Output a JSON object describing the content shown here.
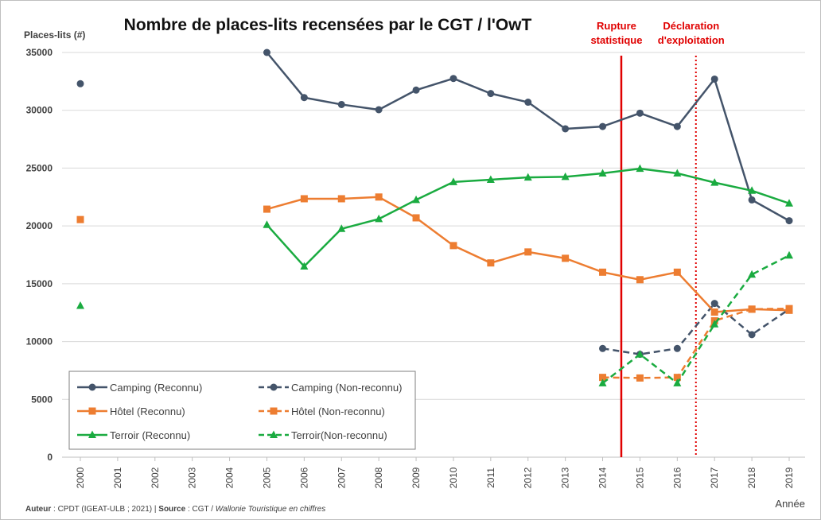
{
  "chart_data": {
    "type": "line",
    "title": "Nombre de places-lits recensées par le CGT / l'OwT",
    "y_label": "Places-lits (#)",
    "x_label": "Année",
    "categories": [
      "2000",
      "2001",
      "2002",
      "2003",
      "2004",
      "2005",
      "2006",
      "2007",
      "2008",
      "2009",
      "2010",
      "2011",
      "2012",
      "2013",
      "2014",
      "2015",
      "2016",
      "2017",
      "2018",
      "2019"
    ],
    "ylim": [
      0,
      35000
    ],
    "yticks": [
      0,
      5000,
      10000,
      15000,
      20000,
      25000,
      30000,
      35000
    ],
    "grid": true,
    "legend": "lower left",
    "series": [
      {
        "name": "Camping (Reconnu)",
        "color": "#44546a",
        "marker": "circle",
        "dash": false,
        "values": [
          32300,
          null,
          null,
          null,
          null,
          35000,
          31100,
          30500,
          30050,
          31750,
          32750,
          31450,
          30700,
          28400,
          28600,
          29750,
          28600,
          32700,
          22250,
          20450
        ]
      },
      {
        "name": "Camping (Non-reconnu)",
        "color": "#44546a",
        "marker": "circle",
        "dash": true,
        "values": [
          null,
          null,
          null,
          null,
          null,
          null,
          null,
          null,
          null,
          null,
          null,
          null,
          null,
          null,
          9400,
          8900,
          9400,
          13300,
          10600,
          12800
        ]
      },
      {
        "name": "Hôtel (Reconnu)",
        "color": "#ed7d31",
        "marker": "square",
        "dash": false,
        "values": [
          20550,
          null,
          null,
          null,
          null,
          21450,
          22350,
          22350,
          22500,
          20700,
          18300,
          16800,
          17750,
          17200,
          16000,
          15350,
          16000,
          12550,
          12800,
          12700
        ]
      },
      {
        "name": "Hôtel (Non-reconnu)",
        "color": "#ed7d31",
        "marker": "square",
        "dash": true,
        "values": [
          null,
          null,
          null,
          null,
          null,
          null,
          null,
          null,
          null,
          null,
          null,
          null,
          null,
          null,
          6900,
          6850,
          6900,
          11800,
          12800,
          12850
        ]
      },
      {
        "name": "Terroir (Reconnu)",
        "color": "#1aab40",
        "marker": "triangle",
        "dash": false,
        "values": [
          13100,
          null,
          null,
          null,
          null,
          20100,
          16500,
          19750,
          20600,
          22250,
          23800,
          24000,
          24200,
          24250,
          24550,
          24950,
          24550,
          23750,
          23050,
          21950
        ]
      },
      {
        "name": "Terroir(Non-reconnu)",
        "color": "#1aab40",
        "marker": "triangle",
        "dash": true,
        "values": [
          null,
          null,
          null,
          null,
          null,
          null,
          null,
          null,
          null,
          null,
          null,
          null,
          null,
          null,
          6400,
          8900,
          6400,
          11500,
          15800,
          17450
        ]
      }
    ],
    "annotations": [
      {
        "lines": [
          "Rupture",
          "statistique"
        ],
        "x": 2014.5,
        "style": "solid",
        "color": "#e00000"
      },
      {
        "lines": [
          "Déclaration",
          "d'exploitation"
        ],
        "x": 2016.5,
        "style": "dotted",
        "color": "#e00000"
      }
    ],
    "footer": {
      "author_label": "Auteur",
      "author": " : CPDT (IGEAT-ULB ; 2021) | ",
      "source_label": "Source",
      "source": " : CGT / ",
      "source_title": "Wallonie Touristique en chiffres"
    }
  }
}
